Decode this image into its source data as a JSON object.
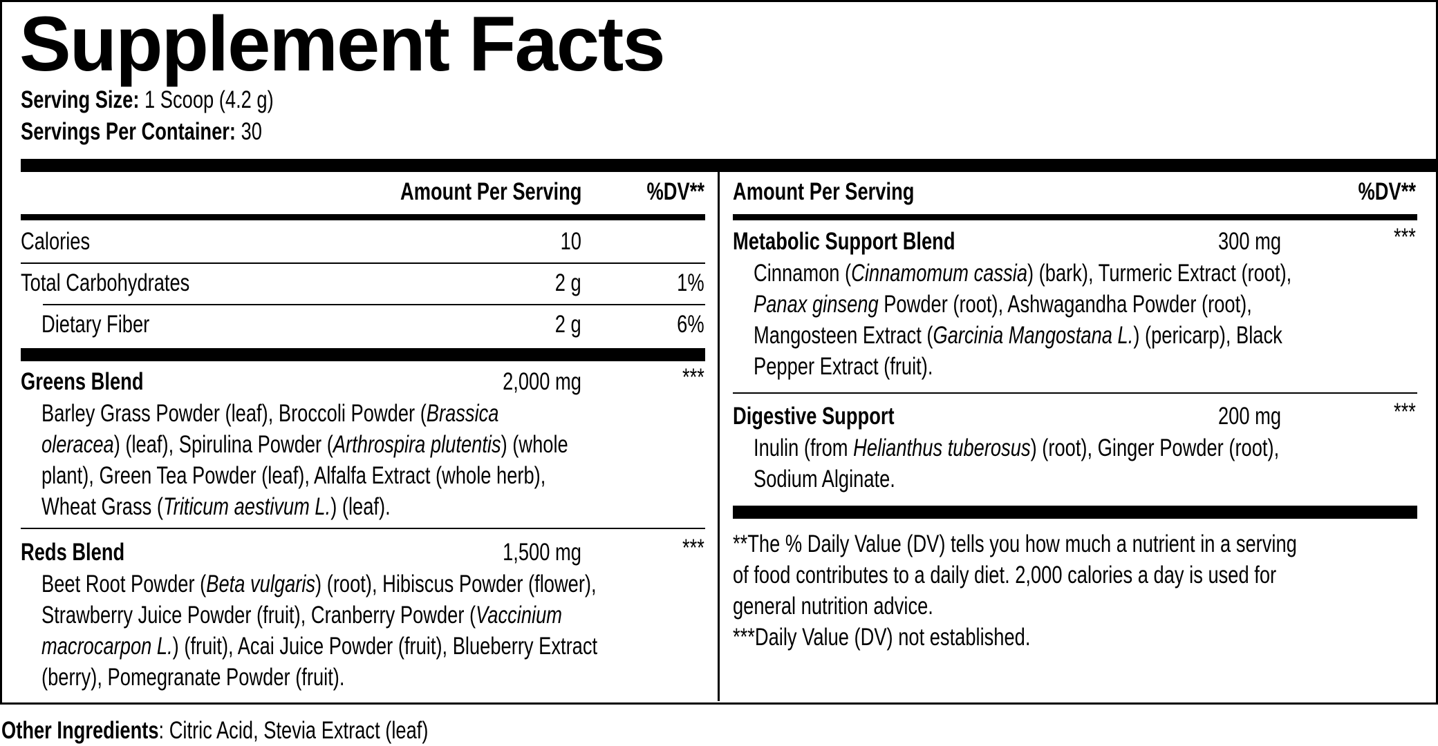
{
  "title": "Supplement Facts",
  "serving_size": {
    "label": "Serving Size:",
    "value": "1 Scoop (4.2 g)"
  },
  "servings_per_container": {
    "label": "Servings Per Container:",
    "value": "30"
  },
  "left": {
    "header": {
      "amount": "Amount Per Serving",
      "dv": "%DV**"
    },
    "nutrients": [
      {
        "name": "Calories",
        "amount": "10",
        "dv": ""
      },
      {
        "name": "Total Carbohydrates",
        "amount": "2 g",
        "dv": "1%"
      },
      {
        "name": "Dietary Fiber",
        "amount": "2 g",
        "dv": "6%"
      }
    ],
    "blends": [
      {
        "name": "Greens Blend",
        "amount": "2,000 mg",
        "dv": "***",
        "lines": [
          [
            {
              "t": "Barley Grass Powder (leaf), Broccoli Powder ("
            },
            {
              "t": "Brassica",
              "i": true
            }
          ],
          [
            {
              "t": "oleracea",
              "i": true
            },
            {
              "t": ") (leaf), Spirulina Powder ("
            },
            {
              "t": "Arthrospira plutentis",
              "i": true
            },
            {
              "t": ") (whole"
            }
          ],
          [
            {
              "t": "plant), Green Tea Powder (leaf), Alfalfa Extract (whole herb),"
            }
          ],
          [
            {
              "t": "Wheat Grass ("
            },
            {
              "t": "Triticum aestivum L.",
              "i": true
            },
            {
              "t": ") (leaf)."
            }
          ]
        ]
      },
      {
        "name": "Reds Blend",
        "amount": "1,500 mg",
        "dv": "***",
        "lines": [
          [
            {
              "t": "Beet Root Powder ("
            },
            {
              "t": "Beta vulgaris",
              "i": true
            },
            {
              "t": ") (root), Hibiscus Powder (flower),"
            }
          ],
          [
            {
              "t": "Strawberry Juice Powder (fruit), Cranberry Powder ("
            },
            {
              "t": "Vaccinium",
              "i": true
            }
          ],
          [
            {
              "t": "macrocarpon L.",
              "i": true
            },
            {
              "t": ") (fruit), Acai Juice Powder (fruit), Blueberry Extract"
            }
          ],
          [
            {
              "t": "(berry), Pomegranate Powder (fruit)."
            }
          ]
        ]
      }
    ]
  },
  "right": {
    "header": {
      "amount": "Amount Per Serving",
      "dv": "%DV**"
    },
    "blends": [
      {
        "name": "Metabolic Support Blend",
        "amount": "300 mg",
        "dv": "***",
        "lines": [
          [
            {
              "t": "Cinnamon ("
            },
            {
              "t": "Cinnamomum cassia",
              "i": true
            },
            {
              "t": ") (bark), Turmeric Extract (root),"
            }
          ],
          [
            {
              "t": "Panax ginseng",
              "i": true
            },
            {
              "t": " Powder (root), Ashwagandha Powder (root),"
            }
          ],
          [
            {
              "t": "Mangosteen Extract ("
            },
            {
              "t": "Garcinia Mangostana L.",
              "i": true
            },
            {
              "t": ") (pericarp), Black"
            }
          ],
          [
            {
              "t": "Pepper Extract (fruit)."
            }
          ]
        ]
      },
      {
        "name": "Digestive Support",
        "amount": "200 mg",
        "dv": "***",
        "lines": [
          [
            {
              "t": "Inulin (from "
            },
            {
              "t": "Helianthus tuberosus",
              "i": true
            },
            {
              "t": ") (root), Ginger Powder (root),"
            }
          ],
          [
            {
              "t": "Sodium Alginate."
            }
          ]
        ]
      }
    ],
    "footnotes": [
      "**The % Daily Value (DV) tells you how much a nutrient in a serving",
      "of food contributes to a daily diet. 2,000 calories a day is used for",
      "general nutrition advice.",
      "***Daily Value (DV) not established."
    ]
  },
  "other_ingredients": {
    "label": "Other Ingredients",
    "value": ": Citric Acid, Stevia Extract (leaf)"
  }
}
